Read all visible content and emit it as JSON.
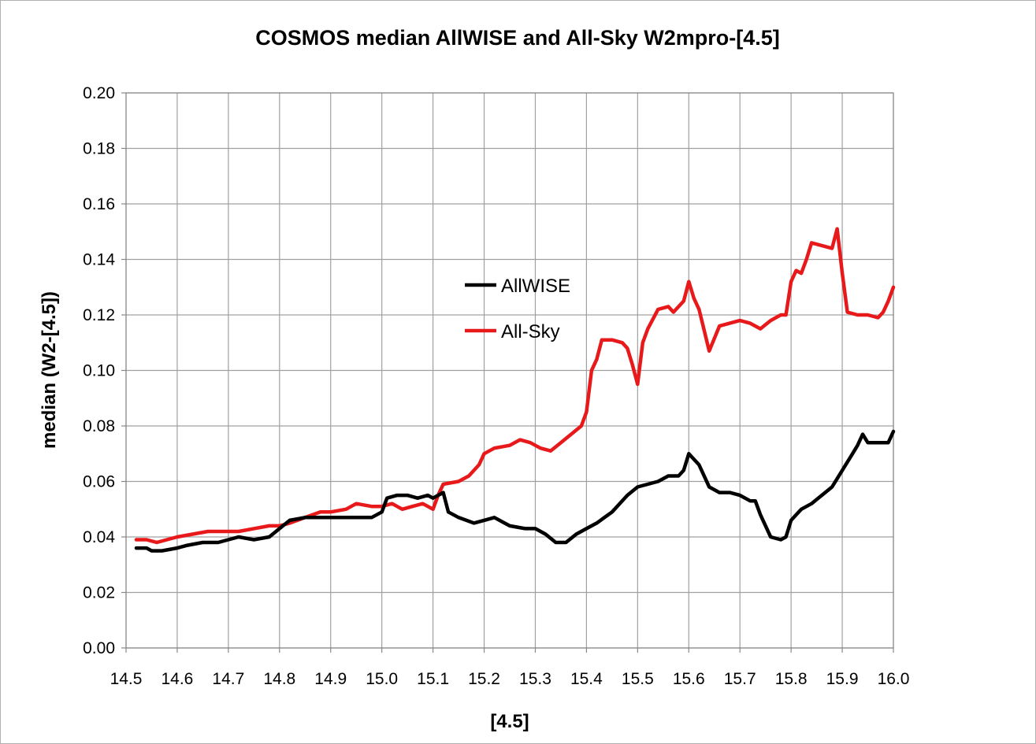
{
  "chart_data": {
    "type": "line",
    "title": "COSMOS median AllWISE and All-Sky W2mpro-[4.5]",
    "xlabel": "[4.5]",
    "ylabel": "median (W2-[4.5])",
    "xlim": [
      14.5,
      16.0
    ],
    "ylim": [
      0.0,
      0.2
    ],
    "x_ticks": [
      "14.5",
      "14.6",
      "14.7",
      "14.8",
      "14.9",
      "15.0",
      "15.1",
      "15.2",
      "15.3",
      "15.4",
      "15.5",
      "15.6",
      "15.7",
      "15.8",
      "15.9",
      "16.0"
    ],
    "y_ticks": [
      "0.00",
      "0.02",
      "0.04",
      "0.06",
      "0.08",
      "0.10",
      "0.12",
      "0.14",
      "0.16",
      "0.18",
      "0.20"
    ],
    "grid": true,
    "legend_position": "center",
    "series": [
      {
        "name": "AllWISE",
        "color": "#000000",
        "x": [
          14.52,
          14.54,
          14.55,
          14.57,
          14.6,
          14.62,
          14.65,
          14.68,
          14.7,
          14.72,
          14.75,
          14.78,
          14.8,
          14.82,
          14.85,
          14.88,
          14.9,
          14.93,
          14.95,
          14.98,
          15.0,
          15.01,
          15.03,
          15.05,
          15.07,
          15.09,
          15.1,
          15.11,
          15.12,
          15.13,
          15.15,
          15.18,
          15.2,
          15.22,
          15.25,
          15.28,
          15.3,
          15.32,
          15.34,
          15.36,
          15.38,
          15.4,
          15.42,
          15.45,
          15.48,
          15.5,
          15.52,
          15.54,
          15.56,
          15.58,
          15.59,
          15.6,
          15.62,
          15.64,
          15.66,
          15.68,
          15.7,
          15.72,
          15.73,
          15.74,
          15.76,
          15.78,
          15.79,
          15.8,
          15.82,
          15.84,
          15.86,
          15.88,
          15.9,
          15.92,
          15.93,
          15.94,
          15.95,
          15.97,
          15.99,
          16.0
        ],
        "y": [
          0.036,
          0.036,
          0.035,
          0.035,
          0.036,
          0.037,
          0.038,
          0.038,
          0.039,
          0.04,
          0.039,
          0.04,
          0.043,
          0.046,
          0.047,
          0.047,
          0.047,
          0.047,
          0.047,
          0.047,
          0.049,
          0.054,
          0.055,
          0.055,
          0.054,
          0.055,
          0.054,
          0.055,
          0.056,
          0.049,
          0.047,
          0.045,
          0.046,
          0.047,
          0.044,
          0.043,
          0.043,
          0.041,
          0.038,
          0.038,
          0.041,
          0.043,
          0.045,
          0.049,
          0.055,
          0.058,
          0.059,
          0.06,
          0.062,
          0.062,
          0.064,
          0.07,
          0.066,
          0.058,
          0.056,
          0.056,
          0.055,
          0.053,
          0.053,
          0.048,
          0.04,
          0.039,
          0.04,
          0.046,
          0.05,
          0.052,
          0.055,
          0.058,
          0.064,
          0.07,
          0.073,
          0.077,
          0.074,
          0.074,
          0.074,
          0.078
        ]
      },
      {
        "name": "All-Sky",
        "color": "#e8191a",
        "x": [
          14.52,
          14.54,
          14.56,
          14.58,
          14.6,
          14.63,
          14.66,
          14.7,
          14.72,
          14.75,
          14.78,
          14.8,
          14.82,
          14.85,
          14.88,
          14.9,
          14.93,
          14.95,
          14.98,
          15.0,
          15.02,
          15.04,
          15.06,
          15.08,
          15.1,
          15.11,
          15.12,
          15.15,
          15.17,
          15.19,
          15.2,
          15.22,
          15.25,
          15.27,
          15.29,
          15.31,
          15.33,
          15.35,
          15.37,
          15.39,
          15.4,
          15.41,
          15.42,
          15.43,
          15.45,
          15.47,
          15.48,
          15.49,
          15.5,
          15.51,
          15.52,
          15.54,
          15.56,
          15.57,
          15.59,
          15.6,
          15.61,
          15.62,
          15.64,
          15.66,
          15.68,
          15.7,
          15.72,
          15.74,
          15.76,
          15.78,
          15.79,
          15.8,
          15.81,
          15.82,
          15.83,
          15.84,
          15.86,
          15.88,
          15.89,
          15.9,
          15.91,
          15.93,
          15.95,
          15.97,
          15.98,
          15.99,
          16.0
        ],
        "y": [
          0.039,
          0.039,
          0.038,
          0.039,
          0.04,
          0.041,
          0.042,
          0.042,
          0.042,
          0.043,
          0.044,
          0.044,
          0.045,
          0.047,
          0.049,
          0.049,
          0.05,
          0.052,
          0.051,
          0.051,
          0.052,
          0.05,
          0.051,
          0.052,
          0.05,
          0.055,
          0.059,
          0.06,
          0.062,
          0.066,
          0.07,
          0.072,
          0.073,
          0.075,
          0.074,
          0.072,
          0.071,
          0.074,
          0.077,
          0.08,
          0.085,
          0.1,
          0.104,
          0.111,
          0.111,
          0.11,
          0.108,
          0.102,
          0.095,
          0.11,
          0.115,
          0.122,
          0.123,
          0.121,
          0.125,
          0.132,
          0.126,
          0.122,
          0.107,
          0.116,
          0.117,
          0.118,
          0.117,
          0.115,
          0.118,
          0.12,
          0.12,
          0.132,
          0.136,
          0.135,
          0.14,
          0.146,
          0.145,
          0.144,
          0.151,
          0.135,
          0.121,
          0.12,
          0.12,
          0.119,
          0.121,
          0.125,
          0.13
        ]
      }
    ]
  }
}
